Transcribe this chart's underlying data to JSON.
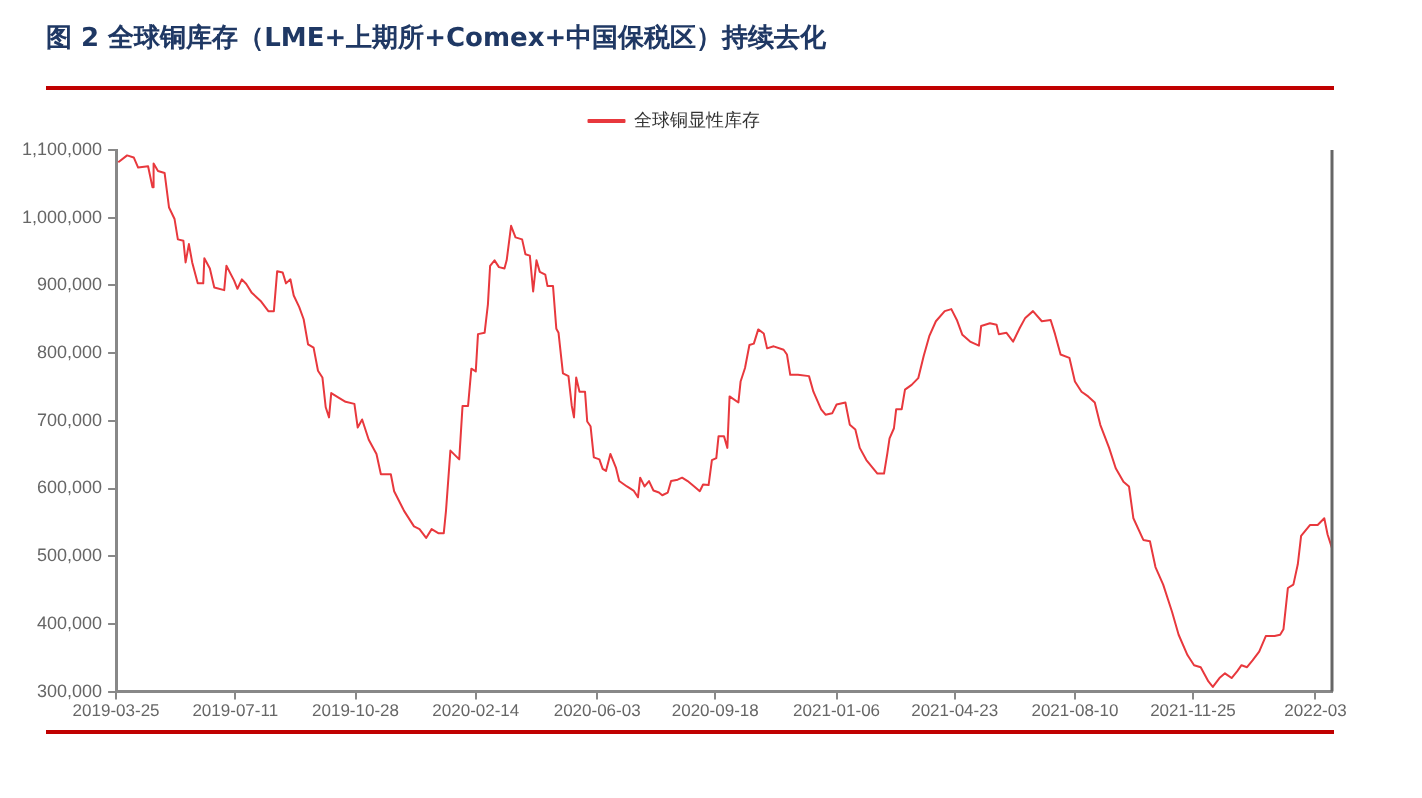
{
  "chart_data": {
    "type": "line",
    "title": "图 2 全球铜库存（LME+上期所+Comex+中国保税区）持续去化",
    "legend": "top",
    "grid": false,
    "marker": "none",
    "line_style": "solid",
    "xlim": [
      "2019-03-25",
      "2022-03-31"
    ],
    "xticks": [
      "2019-03-25",
      "2019-07-11",
      "2019-10-28",
      "2020-02-14",
      "2020-06-03",
      "2020-09-18",
      "2021-01-06",
      "2021-04-23",
      "2021-08-10",
      "2021-11-25",
      {
        "value": "2022-03-16",
        "label": "2022-03"
      }
    ],
    "ylim": [
      300000,
      1100000
    ],
    "yticks": [
      {
        "value": 300000,
        "label": "300,000"
      },
      {
        "value": 400000,
        "label": "400,000"
      },
      {
        "value": 500000,
        "label": "500,000"
      },
      {
        "value": 600000,
        "label": "600,000"
      },
      {
        "value": 700000,
        "label": "700,000"
      },
      {
        "value": 800000,
        "label": "800,000"
      },
      {
        "value": 900000,
        "label": "900,000"
      },
      {
        "value": 1000000,
        "label": "1,000,000"
      },
      {
        "value": 1100000,
        "label": "1,100,000"
      }
    ],
    "series": [
      {
        "name": "全球铜显性库存",
        "color": "#e8383d",
        "x": [
          "2019-03-27",
          "2019-04-04",
          "2019-04-10",
          "2019-04-14",
          "2019-04-23",
          "2019-04-27",
          "2019-04-28",
          "2019-05-02",
          "2019-05-08",
          "2019-05-12",
          "2019-05-17",
          "2019-05-20",
          "2019-05-25",
          "2019-05-27",
          "2019-05-30",
          "2019-06-02",
          "2019-06-07",
          "2019-06-12",
          "2019-06-13",
          "2019-06-18",
          "2019-06-22",
          "2019-07-01",
          "2019-07-03",
          "2019-07-10",
          "2019-07-13",
          "2019-07-17",
          "2019-07-21",
          "2019-07-26",
          "2019-08-03",
          "2019-08-10",
          "2019-08-15",
          "2019-08-18",
          "2019-08-23",
          "2019-08-26",
          "2019-08-30",
          "2019-09-02",
          "2019-09-07",
          "2019-09-11",
          "2019-09-15",
          "2019-09-20",
          "2019-09-24",
          "2019-09-28",
          "2019-10-01",
          "2019-10-04",
          "2019-10-06",
          "2019-10-13",
          "2019-10-19",
          "2019-10-27",
          "2019-10-30",
          "2019-11-03",
          "2019-11-09",
          "2019-11-16",
          "2019-11-20",
          "2019-11-29",
          "2019-12-02",
          "2019-12-11",
          "2019-12-20",
          "2019-12-25",
          "2019-12-31",
          "2020-01-05",
          "2020-01-11",
          "2020-01-16",
          "2020-01-18",
          "2020-01-22",
          "2020-01-30",
          "2020-02-02",
          "2020-02-07",
          "2020-02-10",
          "2020-02-14",
          "2020-02-16",
          "2020-02-22",
          "2020-02-25",
          "2020-02-27",
          "2020-03-02",
          "2020-03-06",
          "2020-03-11",
          "2020-03-13",
          "2020-03-17",
          "2020-03-21",
          "2020-03-27",
          "2020-03-30",
          "2020-04-03",
          "2020-04-06",
          "2020-04-09",
          "2020-04-12",
          "2020-04-17",
          "2020-04-19",
          "2020-04-24",
          "2020-04-27",
          "2020-04-29",
          "2020-05-03",
          "2020-05-08",
          "2020-05-11",
          "2020-05-13",
          "2020-05-15",
          "2020-05-18",
          "2020-05-23",
          "2020-05-25",
          "2020-05-28",
          "2020-05-31",
          "2020-06-05",
          "2020-06-08",
          "2020-06-11",
          "2020-06-15",
          "2020-06-20",
          "2020-06-23",
          "2020-06-30",
          "2020-07-06",
          "2020-07-10",
          "2020-07-12",
          "2020-07-16",
          "2020-07-20",
          "2020-07-24",
          "2020-07-29",
          "2020-08-01",
          "2020-08-06",
          "2020-08-09",
          "2020-08-15",
          "2020-08-19",
          "2020-08-24",
          "2020-08-30",
          "2020-09-04",
          "2020-09-07",
          "2020-09-12",
          "2020-09-15",
          "2020-09-19",
          "2020-09-21",
          "2020-09-26",
          "2020-09-29",
          "2020-10-01",
          "2020-10-09",
          "2020-10-11",
          "2020-10-15",
          "2020-10-19",
          "2020-10-23",
          "2020-10-27",
          "2020-11-01",
          "2020-11-04",
          "2020-11-10",
          "2020-11-19",
          "2020-11-22",
          "2020-11-25",
          "2020-12-02",
          "2020-12-12",
          "2020-12-16",
          "2020-12-23",
          "2020-12-27",
          "2021-01-02",
          "2021-01-06",
          "2021-01-14",
          "2021-01-18",
          "2021-01-23",
          "2021-01-27",
          "2021-02-02",
          "2021-02-07",
          "2021-02-12",
          "2021-02-18",
          "2021-02-21",
          "2021-02-23",
          "2021-02-27",
          "2021-03-01",
          "2021-03-06",
          "2021-03-09",
          "2021-03-15",
          "2021-03-21",
          "2021-03-26",
          "2021-03-31",
          "2021-04-06",
          "2021-04-14",
          "2021-04-20",
          "2021-04-25",
          "2021-04-30",
          "2021-05-07",
          "2021-05-15",
          "2021-05-17",
          "2021-05-25",
          "2021-05-31",
          "2021-06-02",
          "2021-06-09",
          "2021-06-15",
          "2021-06-21",
          "2021-06-26",
          "2021-07-03",
          "2021-07-11",
          "2021-07-19",
          "2021-07-23",
          "2021-07-28",
          "2021-08-05",
          "2021-08-10",
          "2021-08-16",
          "2021-08-22",
          "2021-08-28",
          "2021-09-02",
          "2021-09-10",
          "2021-09-16",
          "2021-09-23",
          "2021-09-28",
          "2021-10-02",
          "2021-10-11",
          "2021-10-17",
          "2021-10-22",
          "2021-10-29",
          "2021-11-06",
          "2021-11-12",
          "2021-11-20",
          "2021-11-26",
          "2021-12-02",
          "2021-12-09",
          "2021-12-13",
          "2021-12-19",
          "2021-12-24",
          "2021-12-30",
          "2022-01-04",
          "2022-01-08",
          "2022-01-13",
          "2022-01-18",
          "2022-01-24",
          "2022-01-30",
          "2022-02-07",
          "2022-02-12",
          "2022-02-15",
          "2022-02-19",
          "2022-02-24",
          "2022-02-28",
          "2022-03-03",
          "2022-03-11",
          "2022-03-18",
          "2022-03-24",
          "2022-03-27",
          "2022-03-31"
        ],
        "values": [
          1082000,
          1092000,
          1089000,
          1074000,
          1076000,
          1045000,
          1080000,
          1069000,
          1066000,
          1015000,
          998000,
          968000,
          966000,
          934000,
          961000,
          934000,
          903000,
          903000,
          940000,
          925000,
          897000,
          893000,
          929000,
          907000,
          895000,
          909000,
          902000,
          889000,
          877000,
          862000,
          862000,
          921000,
          919000,
          903000,
          909000,
          885000,
          868000,
          850000,
          813000,
          808000,
          774000,
          764000,
          720000,
          705000,
          741000,
          734000,
          728000,
          725000,
          690000,
          702000,
          672000,
          651000,
          621000,
          621000,
          596000,
          567000,
          544000,
          540000,
          527000,
          540000,
          534000,
          534000,
          567000,
          656000,
          643000,
          722000,
          722000,
          777000,
          773000,
          828000,
          830000,
          872000,
          929000,
          937000,
          927000,
          925000,
          937000,
          988000,
          971000,
          968000,
          946000,
          944000,
          891000,
          937000,
          920000,
          916000,
          899000,
          899000,
          836000,
          830000,
          770000,
          766000,
          722000,
          705000,
          764000,
          743000,
          743000,
          699000,
          692000,
          646000,
          643000,
          629000,
          626000,
          651000,
          631000,
          611000,
          603000,
          597000,
          587000,
          616000,
          603000,
          611000,
          597000,
          594000,
          590000,
          594000,
          611000,
          613000,
          616000,
          611000,
          603000,
          596000,
          606000,
          605000,
          642000,
          645000,
          677000,
          677000,
          660000,
          736000,
          727000,
          758000,
          778000,
          812000,
          814000,
          835000,
          829000,
          807000,
          810000,
          805000,
          798000,
          768000,
          768000,
          766000,
          743000,
          717000,
          709000,
          711000,
          724000,
          727000,
          694000,
          687000,
          660000,
          642000,
          632000,
          622000,
          622000,
          652000,
          674000,
          689000,
          717000,
          717000,
          746000,
          753000,
          763000,
          796000,
          825000,
          847000,
          862000,
          865000,
          849000,
          827000,
          817000,
          811000,
          840000,
          844000,
          842000,
          828000,
          830000,
          817000,
          837000,
          852000,
          862000,
          847000,
          849000,
          828000,
          798000,
          793000,
          758000,
          743000,
          736000,
          727000,
          694000,
          660000,
          630000,
          610000,
          603000,
          556000,
          524000,
          522000,
          484000,
          458000,
          418000,
          384000,
          354000,
          339000,
          336000,
          315000,
          307000,
          320000,
          327000,
          320000,
          330000,
          339000,
          336000,
          346000,
          359000,
          382000,
          382000,
          384000,
          392000,
          453000,
          458000,
          488000,
          530000,
          546000,
          546000,
          556000,
          532000,
          512000
        ]
      }
    ]
  }
}
